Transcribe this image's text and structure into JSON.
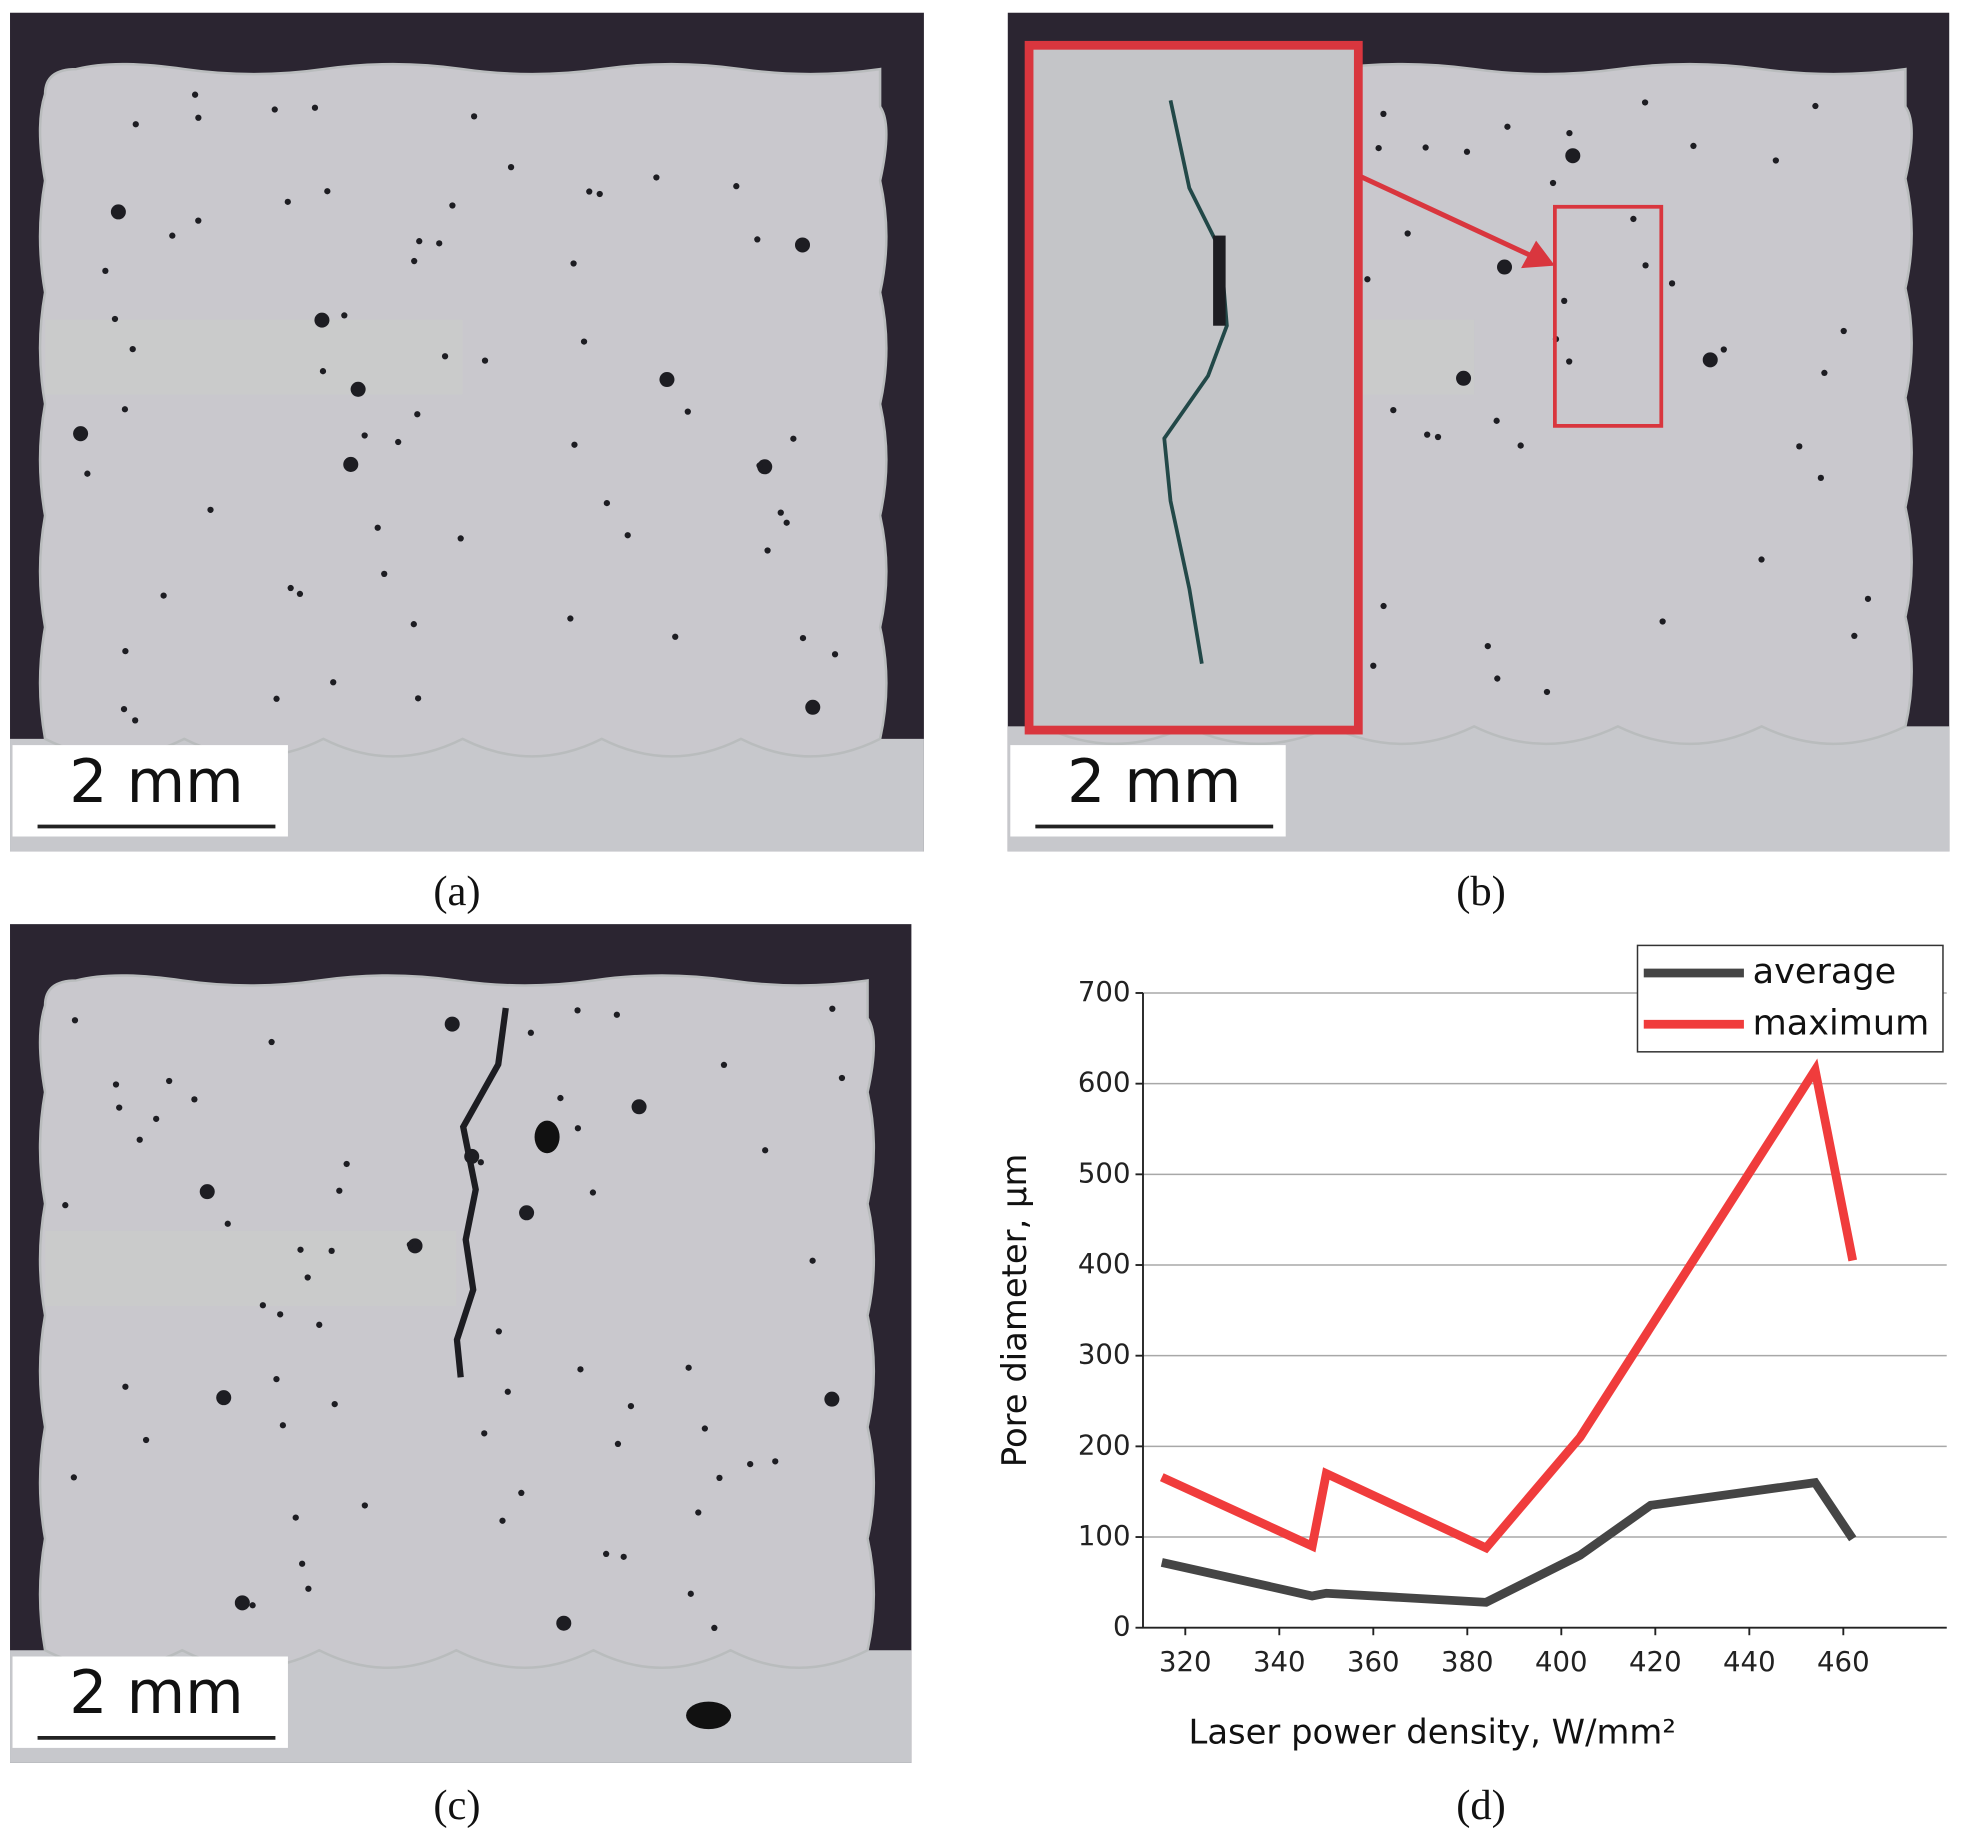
{
  "panels": [
    {
      "scale_bar": "2 mm",
      "caption": "(a)"
    },
    {
      "scale_bar": "2 mm",
      "caption": "(b)"
    },
    {
      "scale_bar": "2 mm",
      "caption": "(c)"
    }
  ],
  "chart_data": {
    "type": "line",
    "caption": "(d)",
    "xlabel": "Laser power density, W/mm²",
    "ylabel": "Pore diameter, µm",
    "xlim": [
      311,
      482
    ],
    "xticks": [
      320,
      340,
      360,
      380,
      400,
      420,
      440,
      460
    ],
    "ylim": [
      0,
      700
    ],
    "yticks": [
      0,
      100,
      200,
      300,
      400,
      500,
      600,
      700
    ],
    "grid": true,
    "legend": "upper right",
    "series": [
      {
        "name": "average",
        "color": "#454545",
        "x": [
          315,
          347,
          350,
          384,
          404,
          419,
          454,
          462
        ],
        "values": [
          72,
          35,
          38,
          28,
          80,
          135,
          160,
          98
        ]
      },
      {
        "name": "maximum",
        "color": "#f03c3c",
        "x": [
          315,
          347,
          350,
          384,
          404,
          454,
          462
        ],
        "values": [
          166,
          90,
          170,
          88,
          210,
          615,
          405
        ]
      }
    ]
  }
}
